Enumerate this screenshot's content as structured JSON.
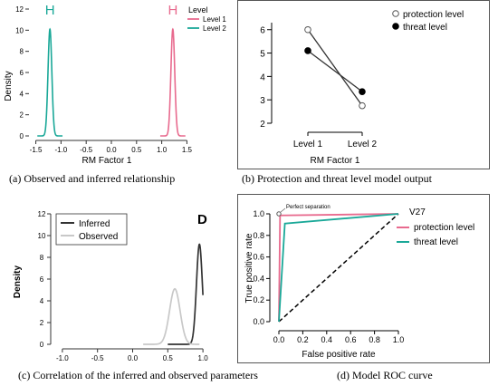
{
  "captions": {
    "a": "(a) Observed and inferred relationship",
    "b": "(b) Protection and threat level model output",
    "c": "(c) Correlation of the inferred and observed parameters",
    "d": "(d) Model ROC curve"
  },
  "chart_data": [
    {
      "id": "a",
      "type": "line",
      "xlabel": "RM Factor 1",
      "ylabel": "Density",
      "xlim": [
        -1.6,
        1.6
      ],
      "ylim": [
        0,
        12
      ],
      "xticks": [
        "-1.5",
        "-1.0",
        "-0.5",
        "0.0",
        "0.5",
        "1.0",
        "1.5"
      ],
      "yticks": [
        "0",
        "2",
        "4",
        "6",
        "8",
        "10",
        "12"
      ],
      "legend": {
        "title": "Level",
        "position": "top-right"
      },
      "series": [
        {
          "name": "Level 1",
          "color": "#e86a8e",
          "mean": 1.22,
          "sd": 0.038,
          "peak": 10.1,
          "marker_label": "H"
        },
        {
          "name": "Level 2",
          "color": "#1aa898",
          "mean": -1.22,
          "sd": 0.038,
          "peak": 10.1,
          "marker_label": "H"
        }
      ]
    },
    {
      "id": "b",
      "type": "line",
      "xlabel": "RM Factor 1",
      "categories": [
        "Level 1",
        "Level 2"
      ],
      "ylim": [
        2,
        6.3
      ],
      "yticks": [
        "2",
        "3",
        "4",
        "5",
        "6"
      ],
      "legend": {
        "position": "top-right"
      },
      "series": [
        {
          "name": "protection level",
          "marker": "open-circle",
          "values": [
            6.0,
            2.75
          ]
        },
        {
          "name": "threat level",
          "marker": "filled-circle",
          "values": [
            5.1,
            3.35
          ]
        }
      ]
    },
    {
      "id": "c",
      "type": "line",
      "ylabel": "Density",
      "panel_label": "D",
      "xlim": [
        -1.05,
        1.05
      ],
      "ylim": [
        0,
        12
      ],
      "xticks": [
        "-1.0",
        "-0.5",
        "0.0",
        "0.5",
        "1.0"
      ],
      "yticks": [
        "0",
        "2",
        "4",
        "6",
        "8",
        "10",
        "12"
      ],
      "legend": {
        "position": "top-left"
      },
      "series": [
        {
          "name": "Inferred",
          "color": "#333333",
          "mean": 0.95,
          "sd": 0.042,
          "peak": 9.2
        },
        {
          "name": "Observed",
          "color": "#c8c8c8",
          "mean": 0.6,
          "sd": 0.075,
          "peak": 5.1
        }
      ]
    },
    {
      "id": "d",
      "type": "line",
      "title": "V27",
      "xlabel": "False positive rate",
      "ylabel": "True positive rate",
      "xlim": [
        0,
        1
      ],
      "ylim": [
        0,
        1
      ],
      "xticks": [
        "0.0",
        "0.2",
        "0.4",
        "0.6",
        "0.8",
        "1.0"
      ],
      "yticks": [
        "0.0",
        "0.2",
        "0.4",
        "0.6",
        "0.8",
        "1.0"
      ],
      "annotation": {
        "text": "Perfect separation",
        "x": 0,
        "y": 1
      },
      "legend": {
        "position": "top-right"
      },
      "series": [
        {
          "name": "protection level",
          "color": "#e86a8e",
          "points": [
            [
              0,
              0
            ],
            [
              0.01,
              0.985
            ],
            [
              1,
              1
            ]
          ]
        },
        {
          "name": "threat level",
          "color": "#1aa898",
          "points": [
            [
              0,
              0
            ],
            [
              0.05,
              0.91
            ],
            [
              1,
              1
            ]
          ]
        }
      ],
      "reference_line": {
        "points": [
          [
            0,
            0
          ],
          [
            1,
            1
          ]
        ],
        "style": "dashed"
      }
    }
  ]
}
